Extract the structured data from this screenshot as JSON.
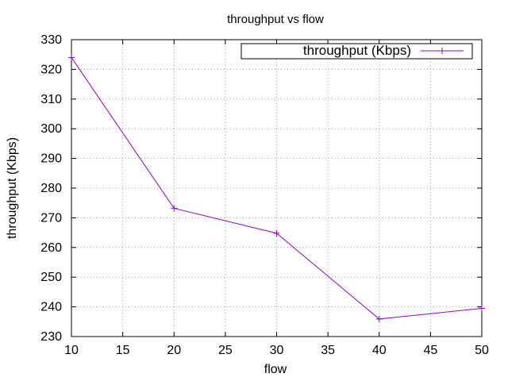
{
  "chart_data": {
    "type": "line",
    "title": "throughput vs flow",
    "xlabel": "flow",
    "ylabel": "throughput (Kbps)",
    "xlim": [
      10,
      50
    ],
    "ylim": [
      230,
      330
    ],
    "xticks": [
      10,
      15,
      20,
      25,
      30,
      35,
      40,
      45,
      50
    ],
    "yticks": [
      230,
      240,
      250,
      260,
      270,
      280,
      290,
      300,
      310,
      320,
      330
    ],
    "grid": true,
    "legend_position": "top-right",
    "series": [
      {
        "name": "throughput (Kbps)",
        "color": "#9400d3",
        "marker": "plus",
        "x": [
          10,
          20,
          30,
          40,
          50
        ],
        "y": [
          324,
          273.2,
          264.8,
          235.9,
          239.5
        ]
      }
    ]
  }
}
